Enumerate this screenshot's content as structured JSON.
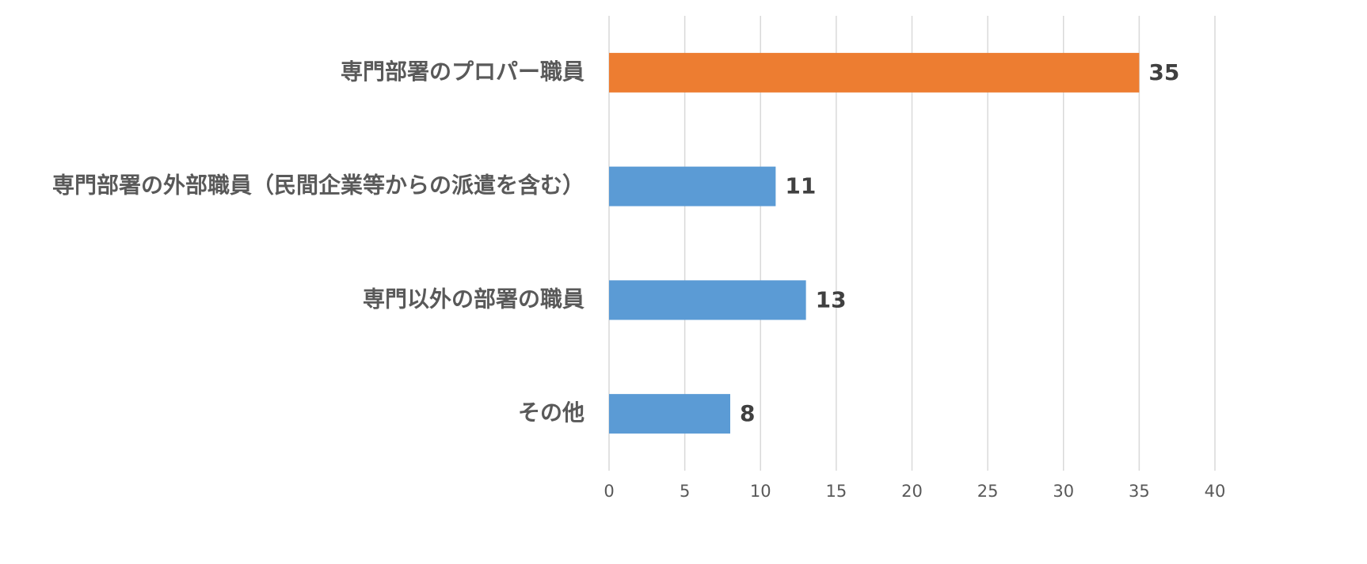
{
  "chart_data": {
    "type": "bar",
    "orientation": "horizontal",
    "categories": [
      "専門部署のプロパー職員",
      "専門部署の外部職員（民間企業等からの派遣を含む）",
      "専門以外の部署の職員",
      "その他"
    ],
    "values": [
      35,
      11,
      13,
      8
    ],
    "colors": [
      "#ED7D31",
      "#5B9BD5",
      "#5B9BD5",
      "#5B9BD5"
    ],
    "xlim": [
      0,
      40
    ],
    "xticks": [
      0,
      5,
      10,
      15,
      20,
      25,
      30,
      35,
      40
    ],
    "grid": true
  }
}
